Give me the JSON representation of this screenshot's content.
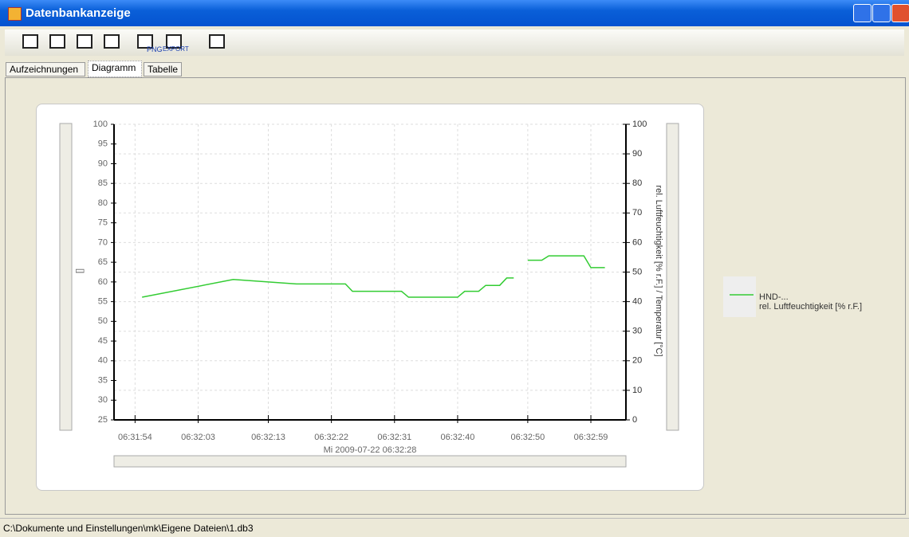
{
  "window": {
    "title": "Datenbankanzeige"
  },
  "toolbar": {
    "labels": [
      "PNG",
      "EXPORT"
    ]
  },
  "tabs": [
    "Aufzeichnungen",
    "Diagramm",
    "Tabelle"
  ],
  "status": "C:\\Dokumente und Einstellungen\\mk\\Eigene Dateien\\1.db3",
  "chart_data": {
    "type": "line",
    "x_label": "Mi 2009-07-22 06:32:28",
    "y_label": "[]",
    "y2_label": "rel. Luftfeuchtigkeit [% r.F.] / Temperatur [°C]",
    "legend_title": "HND-...",
    "legend": "right",
    "grid": true,
    "xlim": [
      "06:31:51",
      "06:33:04"
    ],
    "xticks": [
      "06:31:54",
      "06:32:03",
      "06:32:13",
      "06:32:22",
      "06:32:31",
      "06:32:40",
      "06:32:50",
      "06:32:59"
    ],
    "ylim": [
      25,
      100
    ],
    "yticks": [
      25,
      30,
      35,
      40,
      45,
      50,
      55,
      60,
      65,
      70,
      75,
      80,
      85,
      90,
      95,
      100
    ],
    "y2lim": [
      0,
      100
    ],
    "y2ticks": [
      0,
      10,
      20,
      30,
      40,
      50,
      60,
      70,
      80,
      90,
      100
    ],
    "x": [
      "06:31:55",
      "06:32:08",
      "06:32:17",
      "06:32:24",
      "06:32:25",
      "06:32:32",
      "06:32:33",
      "06:32:40",
      "06:32:41",
      "06:32:43",
      "06:32:44",
      "06:32:46",
      "06:32:47",
      "06:32:48",
      "06:32:49",
      "06:32:50",
      "06:32:52",
      "06:32:53",
      "06:32:58",
      "06:32:59",
      "06:33:01"
    ],
    "series": [
      {
        "name": "rel. Luftfeuchtigkeit [% r.F.]",
        "color": "#33cc33",
        "axis": "y2",
        "values": [
          41.5,
          47.5,
          46,
          46,
          43.5,
          43.5,
          41.5,
          41.5,
          43.5,
          43.5,
          45.5,
          45.5,
          48,
          48,
          null,
          54,
          54,
          55.5,
          55.5,
          51.5,
          51.5
        ]
      }
    ]
  }
}
